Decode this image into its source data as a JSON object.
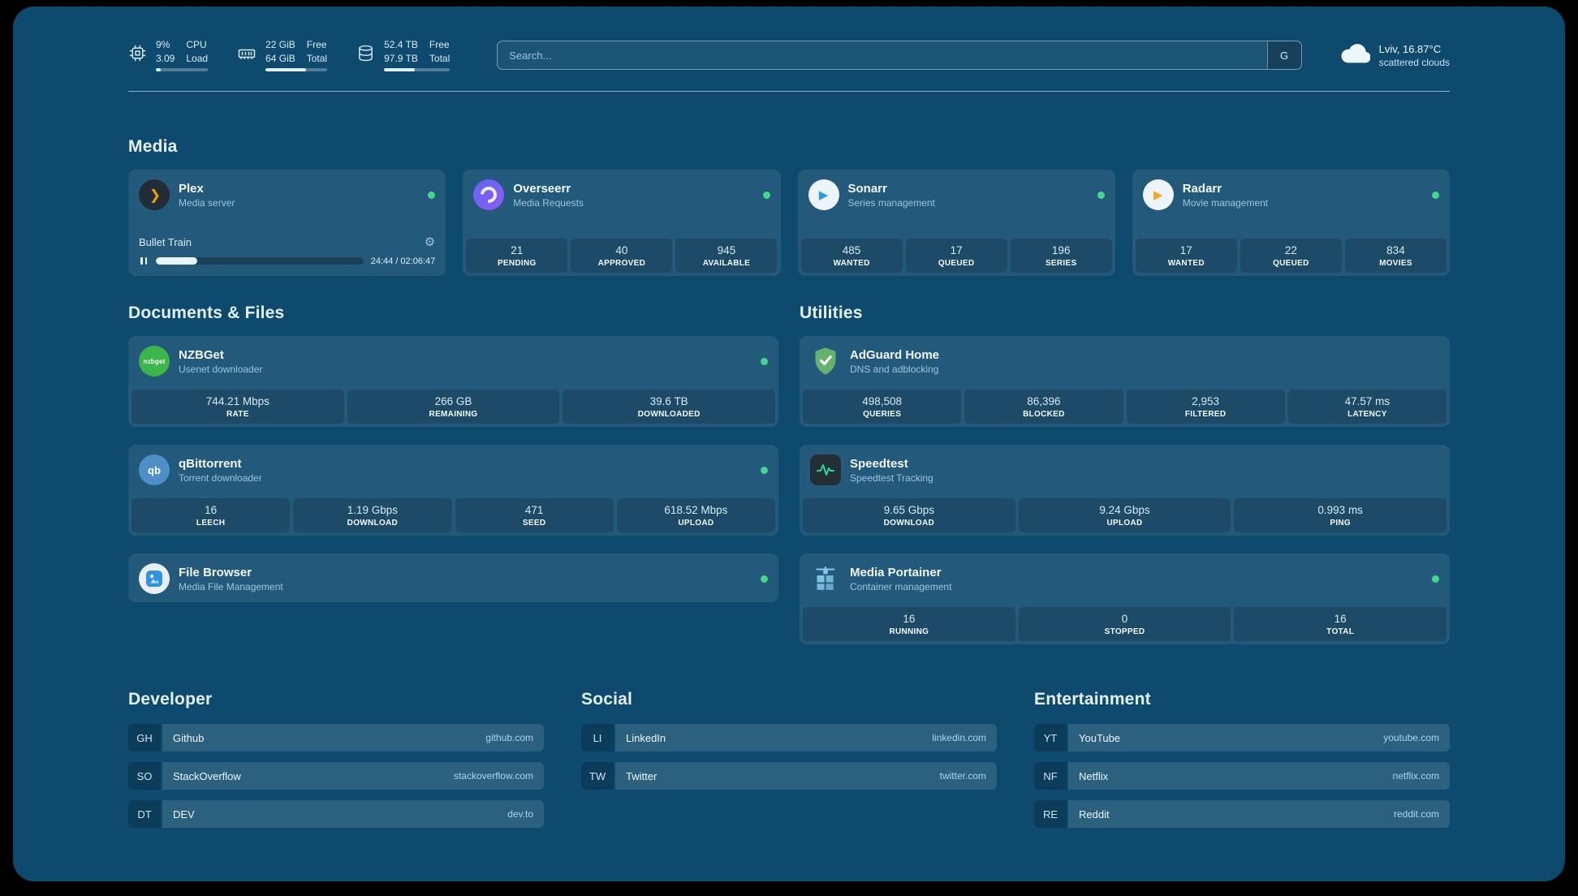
{
  "colors": {
    "background": "#0e4a6e",
    "card": "#1d5a7f",
    "status_online": "#43d98c",
    "secondary_text": "#9cc4dc",
    "url_text": "#a9d4ee",
    "plex": "#e5a00d",
    "overseerr": "#7c6cf5",
    "sonarr": "#2f9ad8",
    "radarr": "#f7a823",
    "nzbget": "#3cb54a",
    "qbittorrent": "#4e8fc7",
    "adguard": "#63b26d",
    "speedtest": "#2fd6a0",
    "portainer": "#85c9ec"
  },
  "icons": {
    "plex_glyph": "❯",
    "sonarr_glyph": "▶",
    "radarr_glyph": "▶",
    "nzbget_text": "nzbget",
    "qbittorrent_text": "qb",
    "gear_glyph": "⚙"
  },
  "topbar": {
    "cpu": {
      "value_top": "9%",
      "value_bottom": "3.09",
      "label_top": "CPU",
      "label_bottom": "Load",
      "percent": 9
    },
    "ram": {
      "value_top": "22 GiB",
      "value_bottom": "64 GiB",
      "label_top": "Free",
      "label_bottom": "Total",
      "percent": 66
    },
    "disk": {
      "value_top": "52.4 TB",
      "value_bottom": "97.9 TB",
      "label_top": "Free",
      "label_bottom": "Total",
      "percent": 47
    },
    "search": {
      "placeholder": "Search...",
      "button_label": "G"
    },
    "weather": {
      "location": "Lviv, 16.87°C",
      "condition": "scattered clouds"
    }
  },
  "media": {
    "heading": "Media",
    "plex": {
      "name": "Plex",
      "subtitle": "Media server",
      "now_playing": "Bullet Train",
      "time": "24:44 / 02:06:47",
      "progress_percent": 20
    },
    "overseerr": {
      "name": "Overseerr",
      "subtitle": "Media Requests",
      "stats": [
        {
          "value": "21",
          "label": "PENDING"
        },
        {
          "value": "40",
          "label": "APPROVED"
        },
        {
          "value": "945",
          "label": "AVAILABLE"
        }
      ]
    },
    "sonarr": {
      "name": "Sonarr",
      "subtitle": "Series management",
      "stats": [
        {
          "value": "485",
          "label": "WANTED"
        },
        {
          "value": "17",
          "label": "QUEUED"
        },
        {
          "value": "196",
          "label": "SERIES"
        }
      ]
    },
    "radarr": {
      "name": "Radarr",
      "subtitle": "Movie management",
      "stats": [
        {
          "value": "17",
          "label": "WANTED"
        },
        {
          "value": "22",
          "label": "QUEUED"
        },
        {
          "value": "834",
          "label": "MOVIES"
        }
      ]
    }
  },
  "documents": {
    "heading": "Documents & Files",
    "nzbget": {
      "name": "NZBGet",
      "subtitle": "Usenet downloader",
      "stats": [
        {
          "value": "744.21 Mbps",
          "label": "RATE"
        },
        {
          "value": "266 GB",
          "label": "REMAINING"
        },
        {
          "value": "39.6 TB",
          "label": "DOWNLOADED"
        }
      ]
    },
    "qbittorrent": {
      "name": "qBittorrent",
      "subtitle": "Torrent downloader",
      "stats": [
        {
          "value": "16",
          "label": "LEECH"
        },
        {
          "value": "1.19 Gbps",
          "label": "DOWNLOAD"
        },
        {
          "value": "471",
          "label": "SEED"
        },
        {
          "value": "618.52 Mbps",
          "label": "UPLOAD"
        }
      ]
    },
    "filebrowser": {
      "name": "File Browser",
      "subtitle": "Media File Management"
    }
  },
  "utilities": {
    "heading": "Utilities",
    "adguard": {
      "name": "AdGuard Home",
      "subtitle": "DNS and adblocking",
      "stats": [
        {
          "value": "498,508",
          "label": "QUERIES"
        },
        {
          "value": "86,396",
          "label": "BLOCKED"
        },
        {
          "value": "2,953",
          "label": "FILTERED"
        },
        {
          "value": "47.57 ms",
          "label": "LATENCY"
        }
      ]
    },
    "speedtest": {
      "name": "Speedtest",
      "subtitle": "Speedtest Tracking",
      "stats": [
        {
          "value": "9.65 Gbps",
          "label": "DOWNLOAD"
        },
        {
          "value": "9.24 Gbps",
          "label": "UPLOAD"
        },
        {
          "value": "0.993 ms",
          "label": "PING"
        }
      ]
    },
    "portainer": {
      "name": "Media Portainer",
      "subtitle": "Container management",
      "stats": [
        {
          "value": "16",
          "label": "RUNNING"
        },
        {
          "value": "0",
          "label": "STOPPED"
        },
        {
          "value": "16",
          "label": "TOTAL"
        }
      ]
    }
  },
  "bookmarks": {
    "developer": {
      "heading": "Developer",
      "items": [
        {
          "abbr": "GH",
          "name": "Github",
          "url": "github.com"
        },
        {
          "abbr": "SO",
          "name": "StackOverflow",
          "url": "stackoverflow.com"
        },
        {
          "abbr": "DT",
          "name": "DEV",
          "url": "dev.to"
        }
      ]
    },
    "social": {
      "heading": "Social",
      "items": [
        {
          "abbr": "LI",
          "name": "LinkedIn",
          "url": "linkedin.com"
        },
        {
          "abbr": "TW",
          "name": "Twitter",
          "url": "twitter.com"
        }
      ]
    },
    "entertainment": {
      "heading": "Entertainment",
      "items": [
        {
          "abbr": "YT",
          "name": "YouTube",
          "url": "youtube.com"
        },
        {
          "abbr": "NF",
          "name": "Netflix",
          "url": "netflix.com"
        },
        {
          "abbr": "RE",
          "name": "Reddit",
          "url": "reddit.com"
        }
      ]
    }
  }
}
